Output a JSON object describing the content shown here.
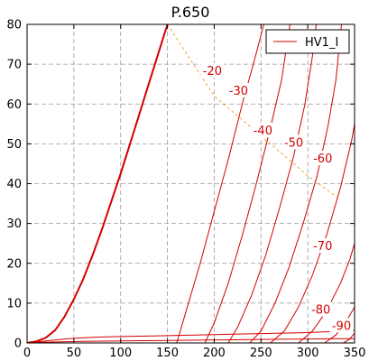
{
  "chart_data": {
    "type": "line",
    "title": "P.650",
    "xlabel": "",
    "ylabel": "",
    "xlim": [
      0,
      350
    ],
    "ylim": [
      0,
      80
    ],
    "x_ticks": [
      0,
      50,
      100,
      150,
      200,
      250,
      300,
      350
    ],
    "y_ticks": [
      0,
      10,
      20,
      30,
      40,
      50,
      60,
      70,
      80
    ],
    "grid": true,
    "legend": {
      "placement": "top-right",
      "entries": [
        "HV1_I"
      ]
    },
    "colors": {
      "curves": "#d40000",
      "load_line": "#f0a030",
      "grid": "#9a9a9a"
    },
    "series": [
      {
        "name": "HV1_I",
        "points": [
          [
            0,
            0
          ],
          [
            10,
            0.4
          ],
          [
            20,
            1.3
          ],
          [
            30,
            3.2
          ],
          [
            40,
            6.6
          ],
          [
            50,
            11
          ],
          [
            60,
            16
          ],
          [
            70,
            22
          ],
          [
            80,
            28.5
          ],
          [
            90,
            35.5
          ],
          [
            100,
            42.5
          ],
          [
            110,
            50
          ],
          [
            120,
            57.5
          ],
          [
            130,
            65
          ],
          [
            140,
            72.5
          ],
          [
            150,
            80
          ]
        ]
      }
    ],
    "grid_curves": [
      {
        "label": "-20",
        "points": [
          [
            160,
            0
          ],
          [
            170,
            8
          ],
          [
            185,
            20
          ],
          [
            200,
            33
          ],
          [
            215,
            46
          ],
          [
            230,
            60
          ],
          [
            243,
            71
          ],
          [
            253,
            80
          ]
        ]
      },
      {
        "label": "-30",
        "points": [
          [
            190,
            0
          ],
          [
            200,
            5
          ],
          [
            215,
            15
          ],
          [
            230,
            27
          ],
          [
            245,
            40
          ],
          [
            260,
            54
          ],
          [
            272,
            66
          ],
          [
            281,
            80
          ]
        ]
      },
      {
        "label": "-40",
        "points": [
          [
            215,
            0
          ],
          [
            225,
            4
          ],
          [
            240,
            12
          ],
          [
            255,
            22
          ],
          [
            270,
            34
          ],
          [
            285,
            47
          ],
          [
            297,
            60
          ],
          [
            305,
            72
          ],
          [
            309,
            80
          ]
        ]
      },
      {
        "label": "-50",
        "points": [
          [
            238,
            0
          ],
          [
            250,
            3
          ],
          [
            265,
            10
          ],
          [
            280,
            19
          ],
          [
            295,
            30
          ],
          [
            310,
            42
          ],
          [
            322,
            55
          ],
          [
            330,
            66
          ],
          [
            336,
            80
          ]
        ]
      },
      {
        "label": "-60",
        "points": [
          [
            260,
            0
          ],
          [
            275,
            3
          ],
          [
            290,
            9
          ],
          [
            305,
            17
          ],
          [
            320,
            27
          ],
          [
            335,
            39
          ],
          [
            347,
            51
          ],
          [
            350,
            55
          ]
        ]
      },
      {
        "label": "-70",
        "points": [
          [
            290,
            0
          ],
          [
            305,
            3
          ],
          [
            320,
            8
          ],
          [
            335,
            15
          ],
          [
            345,
            21
          ],
          [
            350,
            25
          ]
        ]
      },
      {
        "label": "-80",
        "points": [
          [
            318,
            0
          ],
          [
            330,
            2
          ],
          [
            340,
            5
          ],
          [
            350,
            9
          ]
        ]
      },
      {
        "label": "-90",
        "points": [
          [
            338,
            0
          ],
          [
            345,
            1
          ],
          [
            350,
            2.5
          ]
        ]
      }
    ],
    "extra_lines": [
      {
        "points": [
          [
            0,
            0
          ],
          [
            20,
            0.5
          ],
          [
            40,
            1
          ],
          [
            60,
            1.3
          ],
          [
            80,
            1.5
          ],
          [
            100,
            1.6
          ],
          [
            120,
            1.7
          ],
          [
            140,
            1.8
          ],
          [
            160,
            1.9
          ],
          [
            180,
            2
          ],
          [
            200,
            2.1
          ],
          [
            220,
            2.2
          ],
          [
            240,
            2.3
          ],
          [
            260,
            2.4
          ],
          [
            280,
            2.5
          ],
          [
            300,
            2.6
          ],
          [
            320,
            2.8
          ],
          [
            340,
            3
          ],
          [
            350,
            3.1
          ]
        ]
      },
      {
        "points": [
          [
            0,
            0
          ],
          [
            20,
            0.2
          ],
          [
            60,
            0.4
          ],
          [
            100,
            0.5
          ],
          [
            140,
            0.6
          ],
          [
            180,
            0.7
          ],
          [
            220,
            0.8
          ],
          [
            260,
            0.9
          ],
          [
            300,
            1
          ],
          [
            350,
            1.1
          ]
        ]
      }
    ],
    "load_line": {
      "points": [
        [
          150,
          80
        ],
        [
          200,
          62
        ],
        [
          250,
          52
        ],
        [
          300,
          42
        ],
        [
          335,
          36
        ]
      ]
    },
    "curve_labels": [
      {
        "text": "-20",
        "x": 198,
        "y": 68
      },
      {
        "text": "-30",
        "x": 226,
        "y": 63
      },
      {
        "text": "-40",
        "x": 252,
        "y": 53
      },
      {
        "text": "-50",
        "x": 285,
        "y": 50
      },
      {
        "text": "-60",
        "x": 316,
        "y": 46
      },
      {
        "text": "-70",
        "x": 316,
        "y": 24
      },
      {
        "text": "-80",
        "x": 314,
        "y": 8
      },
      {
        "text": "-90",
        "x": 336,
        "y": 4
      }
    ]
  }
}
